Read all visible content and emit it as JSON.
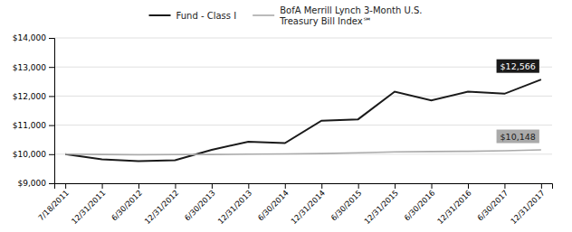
{
  "chart_data": {
    "type": "line",
    "categories": [
      "7/18/2011",
      "12/31/2011",
      "6/30/2012",
      "12/31/2012",
      "6/30/2013",
      "12/31/2013",
      "6/30/2014",
      "12/31/2014",
      "6/30/2015",
      "12/31/2015",
      "6/30/2016",
      "12/31/2016",
      "6/30/2017",
      "12/31/2017"
    ],
    "series": [
      {
        "name": "Fund - Class I",
        "color": "#1a1a1a",
        "end_label": "$12,566",
        "values": [
          10000,
          9820,
          9760,
          9790,
          10150,
          10430,
          10380,
          11150,
          11200,
          12150,
          11850,
          12150,
          12080,
          12566
        ]
      },
      {
        "name": "BofA Merrill Lynch 3-Month U.S.\nTreasury Bill Index℠",
        "color": "#aaaaaa",
        "end_label": "$10,148",
        "values": [
          10000,
          9990,
          9980,
          9985,
          9990,
          10000,
          10010,
          10020,
          10050,
          10080,
          10090,
          10100,
          10120,
          10148
        ]
      }
    ],
    "ylim": [
      9000,
      14000
    ],
    "yticks": [
      {
        "value": 9000,
        "label": "$9,000"
      },
      {
        "value": 10000,
        "label": "$10,000"
      },
      {
        "value": 11000,
        "label": "$11,000"
      },
      {
        "value": 12000,
        "label": "$12,000"
      },
      {
        "value": 13000,
        "label": "$13,000"
      },
      {
        "value": 14000,
        "label": "$14,000"
      }
    ],
    "grid": true,
    "legend": "top"
  }
}
